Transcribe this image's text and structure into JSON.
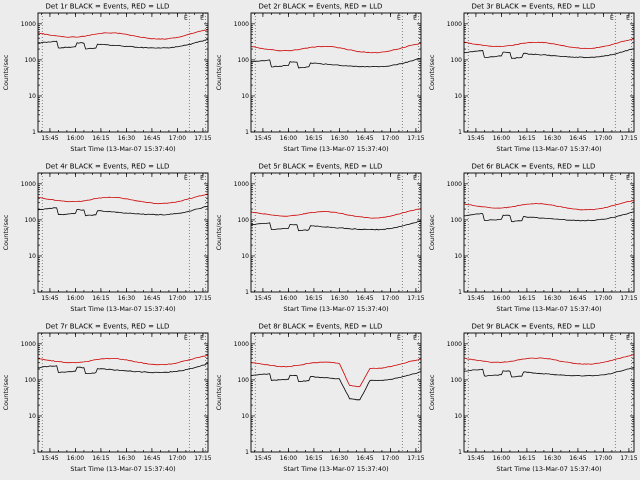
{
  "page": {
    "background": "#ececec",
    "foreground": "#000000"
  },
  "chart_data": {
    "type": "line",
    "layout": {
      "rows": 3,
      "cols": 3
    },
    "xlabel": "Start Time (13-Mar-07 15:37:40)",
    "ylabel": "Counts/sec",
    "legend_note": "BLACK = Events, RED = LLD",
    "xlim": [
      38,
      138
    ],
    "ylim": [
      1,
      2000
    ],
    "yscale": "log",
    "yticks": [
      {
        "v": 1,
        "label": "1"
      },
      {
        "v": 10,
        "label": "10"
      },
      {
        "v": 100,
        "label": "100"
      },
      {
        "v": 1000,
        "label": "1000"
      }
    ],
    "xticks": [
      {
        "v": 45,
        "label": "15:45"
      },
      {
        "v": 60,
        "label": "16:00"
      },
      {
        "v": 75,
        "label": "16:15"
      },
      {
        "v": 90,
        "label": "16:30"
      },
      {
        "v": 105,
        "label": "16:45"
      },
      {
        "v": 120,
        "label": "17:00"
      },
      {
        "v": 135,
        "label": "17:15"
      }
    ],
    "xminor_step": 5,
    "vlines": {
      "positions": [
        40.5,
        127,
        136.5
      ],
      "labeled": [
        127,
        136.5
      ],
      "label": "E",
      "style": "dotted",
      "color": "#555555"
    },
    "series_colors": {
      "Events": "#000000",
      "LLD": "#cc0000"
    },
    "x_minutes": [
      38,
      44,
      49,
      50,
      55,
      60,
      61,
      65,
      66,
      72,
      73,
      78,
      84,
      90,
      96,
      102,
      108,
      114,
      120,
      126,
      132,
      138
    ],
    "charts": [
      {
        "title": "Det 1r BLACK = Events, RED = LLD",
        "series": [
          {
            "name": "Events",
            "color": "#000000",
            "values": [
              290,
              315,
              330,
              215,
              222,
              232,
              300,
              290,
              200,
              212,
              275,
              262,
              250,
              238,
              226,
              218,
              214,
              216,
              230,
              260,
              310,
              375
            ]
          },
          {
            "name": "LLD",
            "color": "#cc0000",
            "values": [
              560,
              500,
              462,
              458,
              428,
              428,
              430,
              452,
              458,
              520,
              528,
              560,
              562,
              514,
              450,
              402,
              378,
              384,
              424,
              500,
              600,
              690
            ]
          }
        ]
      },
      {
        "title": "Det 2r BLACK = Events, RED = LLD",
        "series": [
          {
            "name": "Events",
            "color": "#000000",
            "values": [
              88,
              95,
              100,
              64,
              67,
              70,
              90,
              87,
              60,
              64,
              82,
              79,
              75,
              71,
              68,
              65,
              64,
              65,
              69,
              78,
              93,
              112
            ]
          },
          {
            "name": "LLD",
            "color": "#cc0000",
            "values": [
              235,
              210,
              194,
              192,
              180,
              180,
              181,
              190,
              192,
              218,
              222,
              235,
              236,
              216,
              189,
              169,
              159,
              161,
              178,
              210,
              252,
              290
            ]
          }
        ]
      },
      {
        "title": "Det 3r BLACK = Events, RED = LLD",
        "series": [
          {
            "name": "Events",
            "color": "#000000",
            "values": [
              160,
              173,
              182,
              118,
              122,
              128,
              165,
              160,
              110,
              117,
              151,
              144,
              138,
              131,
              124,
              120,
              118,
              119,
              127,
              143,
              171,
              206
            ]
          },
          {
            "name": "LLD",
            "color": "#cc0000",
            "values": [
              308,
              275,
              254,
              252,
              235,
              235,
              237,
              249,
              252,
              286,
              290,
              308,
              309,
              283,
              248,
              221,
              208,
              211,
              233,
              275,
              330,
              380
            ]
          }
        ]
      },
      {
        "title": "Det 4r BLACK = Events, RED = LLD",
        "series": [
          {
            "name": "Events",
            "color": "#000000",
            "values": [
              189,
              205,
              215,
              140,
              144,
              151,
              195,
              189,
              130,
              138,
              179,
              170,
              163,
              155,
              147,
              142,
              139,
              140,
              150,
              169,
              202,
              244
            ]
          },
          {
            "name": "LLD",
            "color": "#cc0000",
            "values": [
              420,
              375,
              347,
              344,
              321,
              321,
              323,
              339,
              344,
              390,
              396,
              420,
              422,
              386,
              338,
              302,
              284,
              288,
              318,
              375,
              450,
              518
            ]
          }
        ]
      },
      {
        "title": "Det 5r BLACK = Events, RED = LLD",
        "series": [
          {
            "name": "Events",
            "color": "#000000",
            "values": [
              73,
              79,
              83,
              54,
              56,
              58,
              75,
              73,
              50,
              53,
              69,
              66,
              63,
              60,
              57,
              55,
              54,
              54,
              58,
              65,
              78,
              94
            ]
          },
          {
            "name": "LLD",
            "color": "#cc0000",
            "values": [
              168,
              150,
              139,
              137,
              128,
              128,
              129,
              136,
              137,
              156,
              158,
              168,
              169,
              154,
              135,
              121,
              113,
              115,
              127,
              150,
              180,
              207
            ]
          }
        ]
      },
      {
        "title": "Det 6r BLACK = Events, RED = LLD",
        "series": [
          {
            "name": "Events",
            "color": "#000000",
            "values": [
              131,
              142,
              149,
              97,
              100,
              104,
              135,
              131,
              90,
              95,
              124,
              118,
              113,
              107,
              102,
              98,
              96,
              97,
              104,
              117,
              140,
              169
            ]
          },
          {
            "name": "LLD",
            "color": "#cc0000",
            "values": [
              280,
              250,
              231,
              229,
              214,
              214,
              215,
              226,
              229,
              260,
              264,
              280,
              281,
              257,
              225,
              201,
              189,
              192,
              212,
              250,
              300,
              345
            ]
          }
        ]
      },
      {
        "title": "Det 7r BLACK = Events, RED = LLD",
        "series": [
          {
            "name": "Events",
            "color": "#000000",
            "values": [
              218,
              236,
              248,
              161,
              167,
              174,
              225,
              218,
              150,
              159,
              206,
              197,
              188,
              179,
              170,
              164,
              161,
              162,
              173,
              195,
              233,
              281
            ]
          },
          {
            "name": "LLD",
            "color": "#cc0000",
            "values": [
              392,
              350,
              323,
              321,
              300,
              300,
              301,
              316,
              321,
              364,
              370,
              392,
              393,
              360,
              315,
              281,
              265,
              269,
              297,
              350,
              420,
              483
            ]
          }
        ]
      },
      {
        "title": "Det 8r BLACK = Events, RED = LLD",
        "series": [
          {
            "name": "Events",
            "color": "#000000",
            "values": [
              131,
              142,
              149,
              97,
              100,
              104,
              135,
              131,
              90,
              95,
              124,
              118,
              113,
              107,
              30,
              28,
              96,
              97,
              104,
              117,
              140,
              169
            ]
          },
          {
            "name": "LLD",
            "color": "#cc0000",
            "values": [
              308,
              275,
              254,
              252,
              235,
              235,
              237,
              249,
              252,
              286,
              290,
              308,
              309,
              283,
              70,
              65,
              208,
              211,
              233,
              275,
              330,
              380
            ]
          }
        ]
      },
      {
        "title": "Det 9r BLACK = Events, RED = LLD",
        "series": [
          {
            "name": "Events",
            "color": "#000000",
            "values": [
              174,
              189,
              198,
              129,
              133,
              139,
              180,
              174,
              120,
              127,
              165,
              157,
              150,
              143,
              136,
              131,
              128,
              130,
              138,
              156,
              186,
              225
            ]
          },
          {
            "name": "LLD",
            "color": "#cc0000",
            "values": [
              403,
              360,
              333,
              330,
              308,
              308,
              310,
              325,
              330,
              374,
              380,
              403,
              405,
              370,
              324,
              289,
              272,
              277,
              305,
              360,
              432,
              497
            ]
          }
        ]
      }
    ]
  }
}
